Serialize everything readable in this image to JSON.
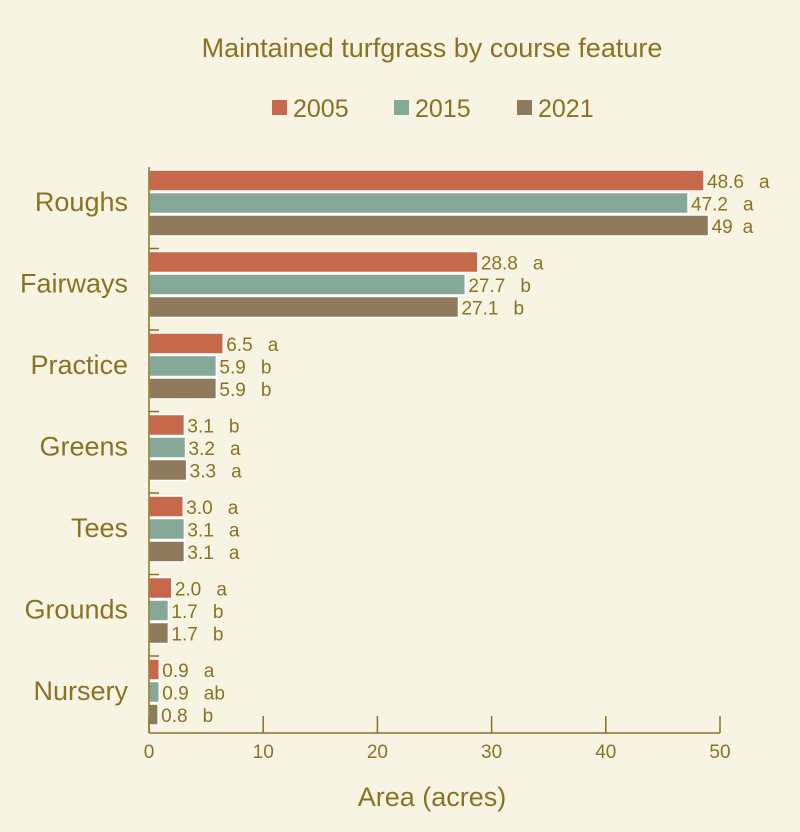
{
  "chart_data": {
    "type": "bar",
    "orientation": "horizontal",
    "title": "Maintained turfgrass by course feature",
    "xlabel": "Area (acres)",
    "ylabel": "",
    "xlim": [
      0,
      50
    ],
    "x_ticks": [
      0,
      10,
      20,
      30,
      40,
      50
    ],
    "grid": false,
    "legend_position": "top-center",
    "categories": [
      "Roughs",
      "Fairways",
      "Practice",
      "Greens",
      "Tees",
      "Grounds",
      "Nursery"
    ],
    "series": [
      {
        "name": "2005",
        "color": "#c5694a",
        "values": [
          48.6,
          28.8,
          6.5,
          3.1,
          3.0,
          2.0,
          0.9
        ],
        "labels": [
          "48.6",
          "28.8",
          "6.5",
          "3.1",
          "3.0",
          "2.0",
          "0.9"
        ],
        "letters": [
          "a",
          "a",
          "a",
          "b",
          "a",
          "a",
          "a"
        ]
      },
      {
        "name": "2015",
        "color": "#85a898",
        "values": [
          47.2,
          27.7,
          5.9,
          3.2,
          3.1,
          1.7,
          0.9
        ],
        "labels": [
          "47.2",
          "27.7",
          "5.9",
          "3.2",
          "3.1",
          "1.7",
          "0.9"
        ],
        "letters": [
          "a",
          "b",
          "b",
          "a",
          "a",
          "b",
          "ab"
        ]
      },
      {
        "name": "2021",
        "color": "#8f7a5c",
        "values": [
          49,
          27.1,
          5.9,
          3.3,
          3.1,
          1.7,
          0.8
        ],
        "labels": [
          "49",
          "27.1",
          "5.9",
          "3.3",
          "3.1",
          "1.7",
          "0.8"
        ],
        "letters": [
          "a",
          "b",
          "b",
          "a",
          "a",
          "b",
          "b"
        ]
      }
    ]
  }
}
